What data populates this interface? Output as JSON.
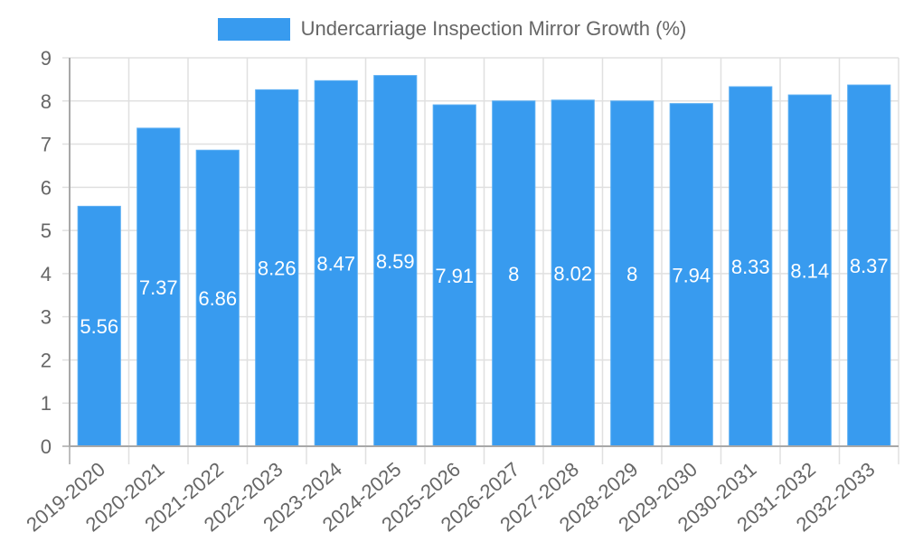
{
  "chart_data": {
    "type": "bar",
    "title": "",
    "xlabel": "",
    "ylabel": "",
    "ylim": [
      0,
      9
    ],
    "yticks": [
      0,
      1,
      2,
      3,
      4,
      5,
      6,
      7,
      8,
      9
    ],
    "grid": true,
    "legend_position": "top",
    "categories": [
      "2019-2020",
      "2020-2021",
      "2021-2022",
      "2022-2023",
      "2023-2024",
      "2024-2025",
      "2025-2026",
      "2026-2027",
      "2027-2028",
      "2028-2029",
      "2029-2030",
      "2030-2031",
      "2031-2032",
      "2032-2033"
    ],
    "series": [
      {
        "name": "Undercarriage Inspection Mirror Growth (%)",
        "color": "#389bef",
        "values": [
          5.56,
          7.37,
          6.86,
          8.26,
          8.47,
          8.59,
          7.91,
          8,
          8.02,
          8,
          7.94,
          8.33,
          8.14,
          8.37
        ],
        "data_labels": [
          "5.56",
          "7.37",
          "6.86",
          "8.26",
          "8.47",
          "8.59",
          "7.91",
          "8",
          "8.02",
          "8",
          "7.94",
          "8.33",
          "8.14",
          "8.37"
        ]
      }
    ]
  },
  "legend": {
    "label": "Undercarriage Inspection Mirror Growth (%)",
    "color": "#389bef"
  },
  "colors": {
    "bar": "#389bef",
    "grid": "#e0e0e0",
    "axis": "#a8a8a8",
    "tick_text": "#666666",
    "data_label": "#ffffff"
  }
}
